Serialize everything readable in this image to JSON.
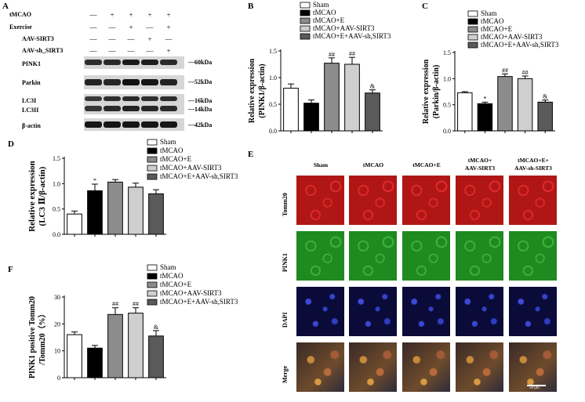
{
  "panels": {
    "A": "A",
    "B": "B",
    "C": "C",
    "D": "D",
    "E": "E",
    "F": "F"
  },
  "blot": {
    "conditions": [
      {
        "label": "tMCAO",
        "marks": [
          "—",
          "+",
          "+",
          "+",
          "+"
        ]
      },
      {
        "label": "Exercise",
        "marks": [
          "—",
          "—",
          "+",
          "—",
          "+"
        ]
      },
      {
        "label": "AAV-SIRT3",
        "marks": [
          "—",
          "—",
          "—",
          "+",
          "—"
        ]
      },
      {
        "label": "AAV-sh_SIRT3",
        "marks": [
          "—",
          "—",
          "—",
          "—",
          "+"
        ]
      }
    ],
    "proteins": [
      {
        "label": "PINK1",
        "kda": "60kDa"
      },
      {
        "label": "Parkin",
        "kda": "52kDa"
      },
      {
        "label": "LC3I",
        "kda": "16kDa"
      },
      {
        "label": "LC3II",
        "kda": "14kDa"
      },
      {
        "label": "β-actin",
        "kda": "42kDa"
      }
    ],
    "band_intensity": {
      "PINK1": [
        0.55,
        0.6,
        0.8,
        0.75,
        0.6
      ],
      "Parkin": [
        0.7,
        0.65,
        0.9,
        0.85,
        0.7
      ],
      "LC3I": [
        0.4,
        0.55,
        0.6,
        0.55,
        0.55
      ],
      "LC3II": [
        0.45,
        0.6,
        0.7,
        0.65,
        0.6
      ],
      "beta-actin": [
        0.85,
        0.85,
        0.85,
        0.85,
        0.85
      ]
    }
  },
  "legend": [
    {
      "label": "Sham",
      "color": "#ffffff"
    },
    {
      "label": "tMCAO",
      "color": "#000000"
    },
    {
      "label": "tMCAO+E",
      "color": "#8c8c8c"
    },
    {
      "label": "tMCAO+AAV-SIRT3",
      "color": "#cfcfcf"
    },
    {
      "label": "tMCAO+E+AAV-sh,SIRT3",
      "color": "#5a5a5a"
    }
  ],
  "chart_data": [
    {
      "id": "B",
      "type": "bar",
      "categories": [
        "Sham",
        "tMCAO",
        "tMCAO+E",
        "tMCAO+AAV-SIRT3",
        "tMCAO+E+AAV-sh,SIRT3"
      ],
      "values": [
        0.8,
        0.52,
        1.27,
        1.25,
        0.71
      ],
      "errors": [
        0.08,
        0.06,
        0.1,
        0.13,
        0.06
      ],
      "annotations": [
        "",
        "",
        "##",
        "##",
        "&"
      ],
      "ylabel": [
        "Relative expression",
        "(PINK1/β-actin)"
      ],
      "ylim": [
        0,
        1.5
      ],
      "yticks": [
        "0.0",
        "0.5",
        "1.0",
        "1.5"
      ]
    },
    {
      "id": "C",
      "type": "bar",
      "categories": [
        "Sham",
        "tMCAO",
        "tMCAO+E",
        "tMCAO+AAV-SIRT3",
        "tMCAO+E+AAV-sh,SIRT3"
      ],
      "values": [
        0.73,
        0.52,
        1.04,
        1.0,
        0.55
      ],
      "errors": [
        0.02,
        0.03,
        0.05,
        0.05,
        0.04
      ],
      "annotations": [
        "",
        "*",
        "##",
        "##",
        "&"
      ],
      "ylabel": [
        "Relative expression",
        "(Parkin/β-actin)"
      ],
      "ylim": [
        0,
        1.5
      ],
      "yticks": [
        "0.0",
        "0.5",
        "1.0",
        "1.5"
      ]
    },
    {
      "id": "D",
      "type": "bar",
      "categories": [
        "Sham",
        "tMCAO",
        "tMCAO+E",
        "tMCAO+AAV-SIRT3",
        "tMCAO+E+AAV-sh,SIRT3"
      ],
      "values": [
        0.4,
        0.86,
        1.03,
        0.93,
        0.8
      ],
      "errors": [
        0.06,
        0.13,
        0.05,
        0.08,
        0.08
      ],
      "annotations": [
        "",
        "*",
        "",
        "",
        ""
      ],
      "ylabel": [
        "Relative expression",
        "(LC3 Ⅱ/β-actin)"
      ],
      "ylim": [
        0,
        1.5
      ],
      "yticks": [
        "0.0",
        "0.5",
        "1.0",
        "1.5"
      ]
    },
    {
      "id": "F",
      "type": "bar",
      "categories": [
        "Sham",
        "tMCAO",
        "tMCAO+E",
        "tMCAO+AAV-SIRT3",
        "tMCAO+E+AAV-sh,SIRT3"
      ],
      "values": [
        16,
        11,
        23.5,
        24,
        15.5
      ],
      "errors": [
        1,
        1,
        2.5,
        2,
        2
      ],
      "annotations": [
        "",
        "",
        "##",
        "##",
        "&"
      ],
      "ylabel": [
        "PINK1 positive Tomm20",
        "/Tomm20（%）"
      ],
      "ylim": [
        0,
        30
      ],
      "yticks": [
        "0",
        "10",
        "20",
        "30"
      ]
    }
  ],
  "micrographs": {
    "columns": [
      "Sham",
      "tMCAO",
      "tMCAO+E",
      "tMCAO+\nAAV-SIRT3",
      "tMCAO+E+\nAAV-sh-SIRT3"
    ],
    "rows": [
      "Tomm20",
      "PINK1",
      "DAPI",
      "Merge"
    ],
    "row_colors": {
      "Tomm20": "#b01616",
      "PINK1": "#1f8a1f",
      "DAPI": "#1a1a8c",
      "Merge": "#6b4a2a"
    },
    "scale_bar": "50 μm"
  }
}
